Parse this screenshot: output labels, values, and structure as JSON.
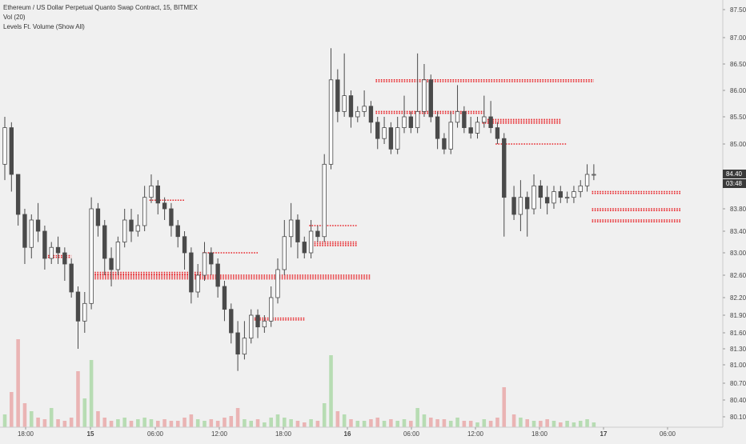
{
  "legend": {
    "title": "Ethereum / US Dollar Perpetual Quanto Swap Contract, 15, BITMEX",
    "indicator1": "Vol (20)",
    "indicator2": "Levels Ft. Volume (Show All)"
  },
  "colors": {
    "background": "#f0f0f0",
    "candle_body": "#4a4a4a",
    "candle_up": "#ffffff",
    "level_dots": "#e8252a",
    "vol_up": "#b7dcb3",
    "vol_down": "#eab4b4",
    "price_tag": "#3a3a3a"
  },
  "price_tags": {
    "last": "84.40",
    "countdown": "03:48"
  },
  "chart_data": {
    "type": "candlestick",
    "y_axis": {
      "ticks": [
        "87.50",
        "87.00",
        "86.50",
        "86.00",
        "85.50",
        "85.00",
        "84.40",
        "83.80",
        "83.40",
        "83.00",
        "82.60",
        "82.20",
        "81.90",
        "81.60",
        "81.30",
        "81.00",
        "80.70",
        "80.40",
        "80.10"
      ],
      "range": [
        80.0,
        87.6
      ]
    },
    "x_axis": {
      "ticks": [
        "18:00",
        "15",
        "06:00",
        "12:00",
        "18:00",
        "16",
        "06:00",
        "12:00",
        "18:00",
        "17",
        "06:00"
      ],
      "bold": [
        "15",
        "16",
        "17"
      ]
    },
    "candles": [
      [
        84.6,
        85.3,
        85.5,
        84.3
      ],
      [
        85.3,
        84.4,
        85.4,
        84.1
      ],
      [
        84.4,
        83.7,
        84.4,
        83.5
      ],
      [
        83.7,
        83.1,
        83.8,
        82.8
      ],
      [
        83.1,
        83.6,
        83.7,
        82.9
      ],
      [
        83.6,
        83.4,
        83.9,
        83.2
      ],
      [
        83.4,
        82.9,
        83.5,
        82.7
      ],
      [
        82.9,
        83.1,
        83.2,
        82.8
      ],
      [
        83.1,
        83.0,
        83.3,
        82.8
      ],
      [
        83.0,
        82.8,
        83.1,
        82.5
      ],
      [
        82.8,
        82.3,
        82.9,
        82.2
      ],
      [
        82.3,
        81.8,
        82.4,
        81.3
      ],
      [
        81.8,
        82.1,
        82.3,
        81.6
      ],
      [
        82.1,
        83.8,
        84.0,
        82.0
      ],
      [
        83.8,
        83.5,
        83.9,
        83.3
      ],
      [
        83.5,
        82.9,
        83.6,
        82.6
      ],
      [
        82.9,
        82.7,
        83.1,
        82.4
      ],
      [
        82.7,
        83.2,
        83.3,
        82.6
      ],
      [
        83.2,
        83.6,
        83.8,
        83.1
      ],
      [
        83.6,
        83.4,
        83.8,
        83.2
      ],
      [
        83.4,
        83.5,
        83.7,
        83.3
      ],
      [
        83.5,
        84.0,
        84.2,
        83.4
      ],
      [
        84.0,
        84.2,
        84.4,
        83.9
      ],
      [
        84.2,
        83.9,
        84.3,
        83.7
      ],
      [
        83.9,
        83.8,
        84.0,
        83.6
      ],
      [
        83.8,
        83.5,
        83.9,
        83.3
      ],
      [
        83.5,
        83.3,
        83.6,
        83.1
      ],
      [
        83.3,
        83.0,
        83.4,
        82.7
      ],
      [
        83.0,
        82.3,
        83.1,
        82.1
      ],
      [
        82.3,
        82.6,
        82.8,
        82.2
      ],
      [
        82.6,
        83.0,
        83.2,
        82.5
      ],
      [
        83.0,
        82.8,
        83.1,
        82.6
      ],
      [
        82.8,
        82.4,
        82.9,
        82.2
      ],
      [
        82.4,
        82.0,
        82.5,
        81.8
      ],
      [
        82.0,
        81.6,
        82.1,
        81.4
      ],
      [
        81.6,
        81.2,
        81.8,
        80.9
      ],
      [
        81.2,
        81.5,
        81.8,
        81.1
      ],
      [
        81.5,
        81.9,
        82.0,
        81.4
      ],
      [
        81.9,
        81.7,
        82.0,
        81.5
      ],
      [
        81.7,
        81.8,
        81.9,
        81.6
      ],
      [
        81.8,
        82.2,
        82.4,
        81.7
      ],
      [
        82.2,
        82.7,
        82.9,
        82.1
      ],
      [
        82.7,
        83.3,
        83.6,
        82.6
      ],
      [
        83.3,
        83.6,
        83.9,
        83.1
      ],
      [
        83.6,
        83.2,
        83.7,
        82.9
      ],
      [
        83.2,
        83.0,
        83.3,
        82.9
      ],
      [
        83.0,
        83.4,
        83.6,
        82.9
      ],
      [
        83.4,
        83.3,
        83.5,
        83.2
      ],
      [
        83.3,
        84.6,
        84.8,
        83.2
      ],
      [
        84.6,
        86.2,
        86.8,
        84.5
      ],
      [
        86.2,
        85.6,
        86.4,
        85.4
      ],
      [
        85.6,
        85.9,
        86.7,
        85.5
      ],
      [
        85.9,
        85.5,
        86.0,
        85.3
      ],
      [
        85.5,
        85.6,
        85.7,
        85.4
      ],
      [
        85.6,
        85.7,
        86.0,
        85.5
      ],
      [
        85.7,
        85.4,
        85.8,
        85.2
      ],
      [
        85.4,
        85.1,
        85.5,
        84.9
      ],
      [
        85.1,
        85.3,
        85.5,
        85.0
      ],
      [
        85.3,
        84.9,
        85.4,
        84.8
      ],
      [
        84.9,
        85.3,
        85.5,
        84.8
      ],
      [
        85.3,
        85.5,
        85.9,
        85.2
      ],
      [
        85.5,
        85.3,
        85.6,
        85.2
      ],
      [
        85.3,
        85.6,
        86.7,
        85.2
      ],
      [
        85.6,
        86.2,
        86.5,
        85.5
      ],
      [
        86.2,
        85.5,
        86.3,
        85.4
      ],
      [
        85.5,
        85.1,
        85.6,
        84.9
      ],
      [
        85.1,
        84.9,
        85.2,
        84.8
      ],
      [
        84.9,
        85.4,
        85.6,
        84.8
      ],
      [
        85.4,
        85.6,
        86.1,
        85.3
      ],
      [
        85.6,
        85.3,
        85.7,
        85.2
      ],
      [
        85.3,
        85.2,
        85.5,
        85.1
      ],
      [
        85.2,
        85.4,
        85.5,
        85.1
      ],
      [
        85.4,
        85.5,
        85.9,
        85.3
      ],
      [
        85.5,
        85.3,
        85.8,
        85.2
      ],
      [
        85.3,
        85.1,
        85.4,
        85.0
      ],
      [
        85.1,
        84.0,
        85.2,
        83.3
      ],
      [
        84.0,
        83.7,
        84.2,
        83.6
      ],
      [
        83.7,
        84.0,
        84.3,
        83.4
      ],
      [
        84.0,
        83.8,
        84.1,
        83.3
      ],
      [
        83.8,
        84.2,
        84.4,
        83.7
      ],
      [
        84.2,
        84.0,
        84.3,
        83.8
      ],
      [
        84.0,
        83.9,
        84.2,
        83.7
      ],
      [
        83.9,
        84.1,
        84.2,
        83.8
      ],
      [
        84.1,
        84.0,
        84.2,
        83.9
      ],
      [
        84.0,
        84.0,
        84.1,
        83.9
      ],
      [
        84.0,
        84.1,
        84.2,
        83.9
      ],
      [
        84.1,
        84.2,
        84.3,
        84.0
      ],
      [
        84.2,
        84.4,
        84.6,
        84.1
      ],
      [
        84.4,
        84.4,
        84.6,
        84.3
      ]
    ],
    "volume": [
      0.08,
      0.22,
      0.55,
      0.15,
      0.1,
      0.06,
      0.05,
      0.12,
      0.05,
      0.04,
      0.06,
      0.35,
      0.18,
      0.42,
      0.1,
      0.06,
      0.04,
      0.05,
      0.06,
      0.04,
      0.05,
      0.06,
      0.05,
      0.04,
      0.05,
      0.04,
      0.04,
      0.06,
      0.08,
      0.05,
      0.04,
      0.05,
      0.04,
      0.06,
      0.07,
      0.12,
      0.05,
      0.04,
      0.05,
      0.03,
      0.06,
      0.08,
      0.06,
      0.05,
      0.04,
      0.03,
      0.05,
      0.04,
      0.15,
      0.45,
      0.1,
      0.08,
      0.05,
      0.04,
      0.04,
      0.05,
      0.06,
      0.04,
      0.05,
      0.04,
      0.05,
      0.04,
      0.12,
      0.08,
      0.06,
      0.05,
      0.05,
      0.04,
      0.06,
      0.04,
      0.04,
      0.03,
      0.05,
      0.04,
      0.06,
      0.25,
      0.08,
      0.06,
      0.05,
      0.04,
      0.04,
      0.05,
      0.04,
      0.03,
      0.04,
      0.03,
      0.04,
      0.05,
      0.03
    ],
    "levels": [
      {
        "price": 82.6,
        "from": 13,
        "to": 55,
        "weight": 3
      },
      {
        "price": 82.65,
        "from": 13,
        "to": 30,
        "weight": 2
      },
      {
        "price": 82.95,
        "from": 6,
        "to": 10,
        "weight": 2
      },
      {
        "price": 83.0,
        "from": 30,
        "to": 38,
        "weight": 1
      },
      {
        "price": 83.2,
        "from": 46,
        "to": 53,
        "weight": 3
      },
      {
        "price": 83.5,
        "from": 46,
        "to": 53,
        "weight": 1
      },
      {
        "price": 83.95,
        "from": 22,
        "to": 27,
        "weight": 1
      },
      {
        "price": 81.85,
        "from": 37,
        "to": 45,
        "weight": 2
      },
      {
        "price": 86.2,
        "from": 56,
        "to": 88,
        "weight": 2
      },
      {
        "price": 85.6,
        "from": 56,
        "to": 72,
        "weight": 2
      },
      {
        "price": 85.45,
        "from": 72,
        "to": 83,
        "weight": 3
      },
      {
        "price": 85.0,
        "from": 74,
        "to": 84,
        "weight": 1
      },
      {
        "price": 84.1,
        "from": 88,
        "to": 101,
        "weight": 2
      },
      {
        "price": 83.8,
        "from": 88,
        "to": 101,
        "weight": 2
      },
      {
        "price": 83.6,
        "from": 88,
        "to": 101,
        "weight": 2
      }
    ]
  }
}
